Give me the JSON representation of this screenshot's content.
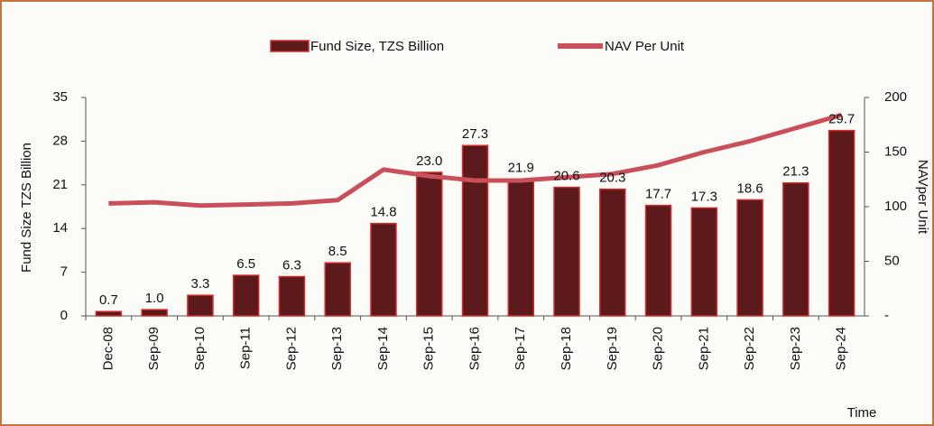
{
  "chart_data": {
    "type": "bar",
    "categories": [
      "Dec-08",
      "Sep-09",
      "Sep-10",
      "Sep-11",
      "Sep-12",
      "Sep-13",
      "Sep-14",
      "Sep-15",
      "Sep-16",
      "Sep-17",
      "Sep-18",
      "Sep-19",
      "Sep-20",
      "Sep-21",
      "Sep-22",
      "Sep-23",
      "Sep-24"
    ],
    "series": [
      {
        "name": "Fund Size, TZS Billion",
        "type": "bar",
        "color": "#5c1a1c",
        "edge": "#d42a2a",
        "values": [
          0.7,
          1.0,
          3.3,
          6.5,
          6.3,
          8.5,
          14.8,
          23.0,
          27.3,
          21.9,
          20.6,
          20.3,
          17.7,
          17.3,
          18.6,
          21.3,
          29.7
        ],
        "value_labels": [
          "0.7",
          "1.0",
          "3.3",
          "6.5",
          "6.3",
          "8.5",
          "14.8",
          "23.0",
          "27.3",
          "21.9",
          "20.6",
          "20.3",
          "17.7",
          "17.3",
          "18.6",
          "21.3",
          "29.7"
        ]
      },
      {
        "name": "NAV Per Unit",
        "type": "line",
        "axis": "y2",
        "color": "#c9505a",
        "values": [
          103,
          104,
          101,
          102,
          103,
          106,
          134,
          128,
          124,
          124,
          127,
          130,
          138,
          150,
          160,
          172,
          184
        ]
      }
    ],
    "ylabel": "Fund Size TZS Billion",
    "y2label": "NAVper Unit",
    "xlabel": "Time",
    "ylim": [
      0,
      35
    ],
    "yticks": [
      0,
      7,
      14,
      21,
      28,
      35
    ],
    "y2lim": [
      0,
      200
    ],
    "y2ticks": [
      {
        "value": 0,
        "label": "-"
      },
      50,
      100,
      150,
      200
    ]
  }
}
